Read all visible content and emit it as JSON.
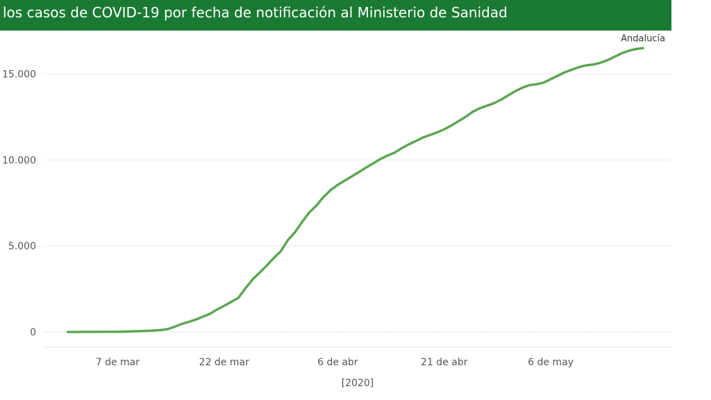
{
  "header": {
    "title": "los casos de COVID-19 por fecha de notificación al Ministerio de Sanidad",
    "background_color": "#1a7a34"
  },
  "chart_data": {
    "type": "line",
    "xlabel": "[2020]",
    "ylabel": "",
    "x_tick_labels": [
      "7 de mar",
      "22 de mar",
      "6 de abr",
      "21 de abr",
      "6 de may"
    ],
    "x_tick_days": [
      7,
      22,
      38,
      53,
      68
    ],
    "y_ticks": [
      0,
      5000,
      10000,
      15000
    ],
    "y_tick_labels": [
      "0",
      "5.000",
      "10.000",
      "15.000"
    ],
    "ylim": [
      0,
      17200
    ],
    "xlim": [
      -3.5,
      85
    ],
    "grid": true,
    "line_color": "#5ca653",
    "series": [
      {
        "name": "Andalucía",
        "x": [
          0,
          1,
          2,
          3,
          4,
          5,
          6,
          7,
          8,
          9,
          10,
          11,
          12,
          13,
          14,
          15,
          16,
          17,
          18,
          19,
          20,
          21,
          22,
          23,
          24,
          25,
          26,
          27,
          28,
          29,
          30,
          31,
          32,
          33,
          34,
          35,
          36,
          37,
          38,
          39,
          40,
          41,
          42,
          43,
          44,
          45,
          46,
          47,
          48,
          49,
          50,
          51,
          52,
          53,
          54,
          55,
          56,
          57,
          58,
          59,
          60,
          61,
          62,
          63,
          64,
          65,
          66,
          67,
          68,
          69,
          70,
          71,
          72,
          73,
          74,
          75,
          76,
          77,
          78,
          79,
          80,
          81
        ],
        "values": [
          1,
          2,
          3,
          4,
          5,
          7,
          10,
          14,
          20,
          30,
          45,
          60,
          80,
          110,
          160,
          300,
          460,
          580,
          720,
          890,
          1050,
          1300,
          1520,
          1750,
          1980,
          2530,
          3050,
          3450,
          3850,
          4300,
          4700,
          5350,
          5800,
          6400,
          6950,
          7350,
          7850,
          8250,
          8550,
          8800,
          9050,
          9300,
          9560,
          9800,
          10050,
          10250,
          10420,
          10680,
          10900,
          11100,
          11300,
          11450,
          11600,
          11780,
          12000,
          12250,
          12500,
          12800,
          13000,
          13150,
          13300,
          13500,
          13750,
          14000,
          14200,
          14350,
          14400,
          14500,
          14700,
          14900,
          15100,
          15250,
          15400,
          15500,
          15550,
          15650,
          15800,
          16000,
          16200,
          16350,
          16450,
          16500
        ]
      }
    ]
  }
}
